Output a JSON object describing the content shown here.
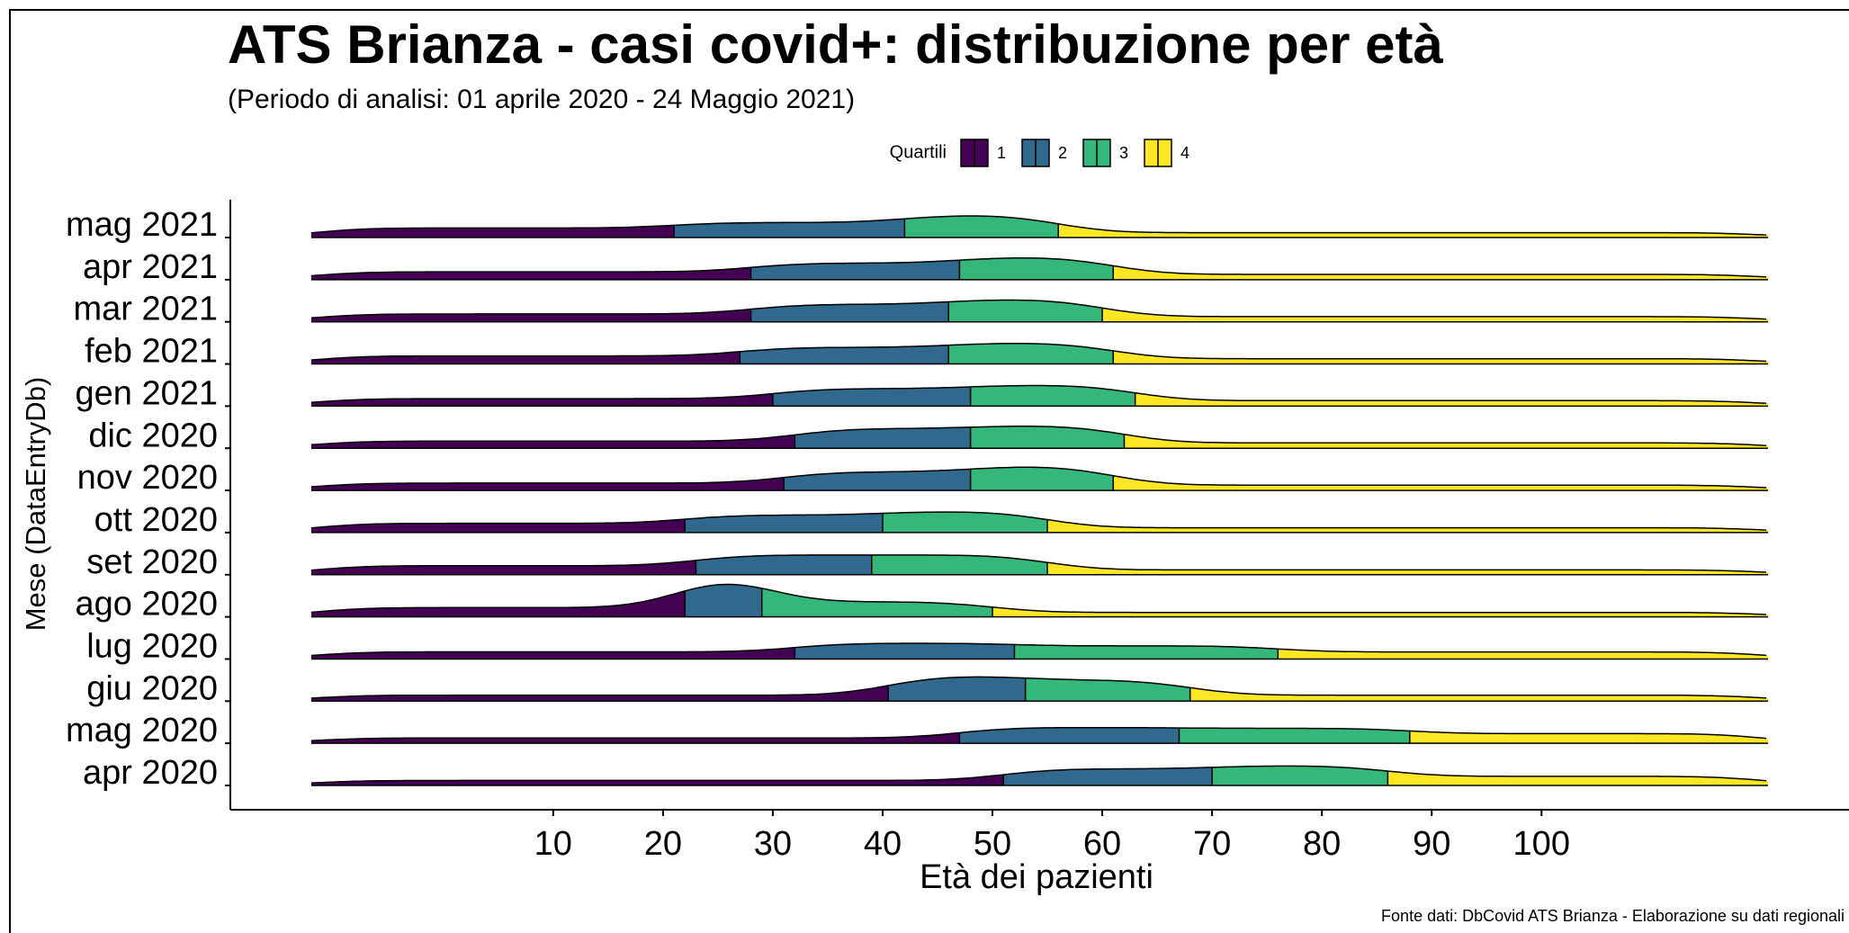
{
  "chart_data": {
    "type": "ridgeline",
    "title": "ATS Brianza - casi covid+: distribuzione per età",
    "subtitle": "(Periodo di analisi: 01 aprile 2020 - 24 Maggio 2021)",
    "source": "Fonte dati: DbCovid ATS Brianza - Elaborazione su dati regionali",
    "x_label": "Età dei pazienti",
    "y_label": "Mese (DataEntryDb)",
    "legend_title": "Quartili",
    "legend": [
      {
        "label": "1",
        "color": "#440154"
      },
      {
        "label": "2",
        "color": "#31688e"
      },
      {
        "label": "3",
        "color": "#35b779"
      },
      {
        "label": "4",
        "color": "#fde725"
      }
    ],
    "categories": [
      "apr 2020",
      "mag 2020",
      "giu 2020",
      "lug 2020",
      "ago 2020",
      "set 2020",
      "ott 2020",
      "nov 2020",
      "dic 2020",
      "gen 2021",
      "feb 2021",
      "mar 2021",
      "apr 2021",
      "mag 2021"
    ],
    "quartiles": [
      [
        51,
        70,
        86
      ],
      [
        47,
        67,
        88
      ],
      [
        40.5,
        53,
        68
      ],
      [
        32,
        52,
        76
      ],
      [
        22,
        29,
        50
      ],
      [
        23,
        39,
        55
      ],
      [
        22,
        40,
        55
      ],
      [
        31,
        48,
        61
      ],
      [
        32,
        48,
        62
      ],
      [
        30,
        48,
        63
      ],
      [
        27,
        46,
        61
      ],
      [
        28,
        46,
        60
      ],
      [
        28,
        47,
        61
      ],
      [
        21,
        42,
        56
      ]
    ],
    "xlim": [
      -19.4,
      128
    ],
    "xticks": [
      10,
      20,
      30,
      40,
      50,
      60,
      70,
      80,
      90,
      100
    ]
  }
}
